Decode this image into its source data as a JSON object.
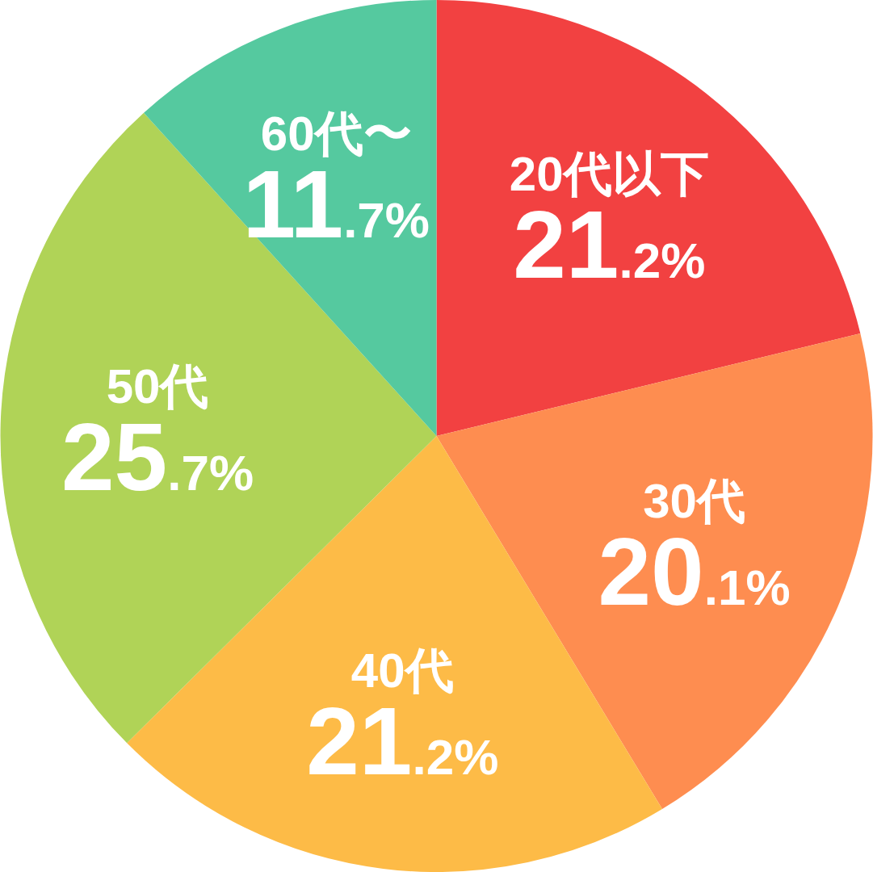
{
  "chart_data": {
    "type": "pie",
    "categories": [
      "20代以下",
      "30代",
      "40代",
      "50代",
      "60代〜"
    ],
    "values": [
      21.2,
      20.1,
      21.2,
      25.7,
      11.7
    ],
    "colors": [
      "#f24141",
      "#fe8d50",
      "#fdbb47",
      "#b0d357",
      "#55c99f"
    ],
    "value_labels": [
      "21.2%",
      "20.1%",
      "21.2%",
      "25.7%",
      "11.7%"
    ]
  }
}
